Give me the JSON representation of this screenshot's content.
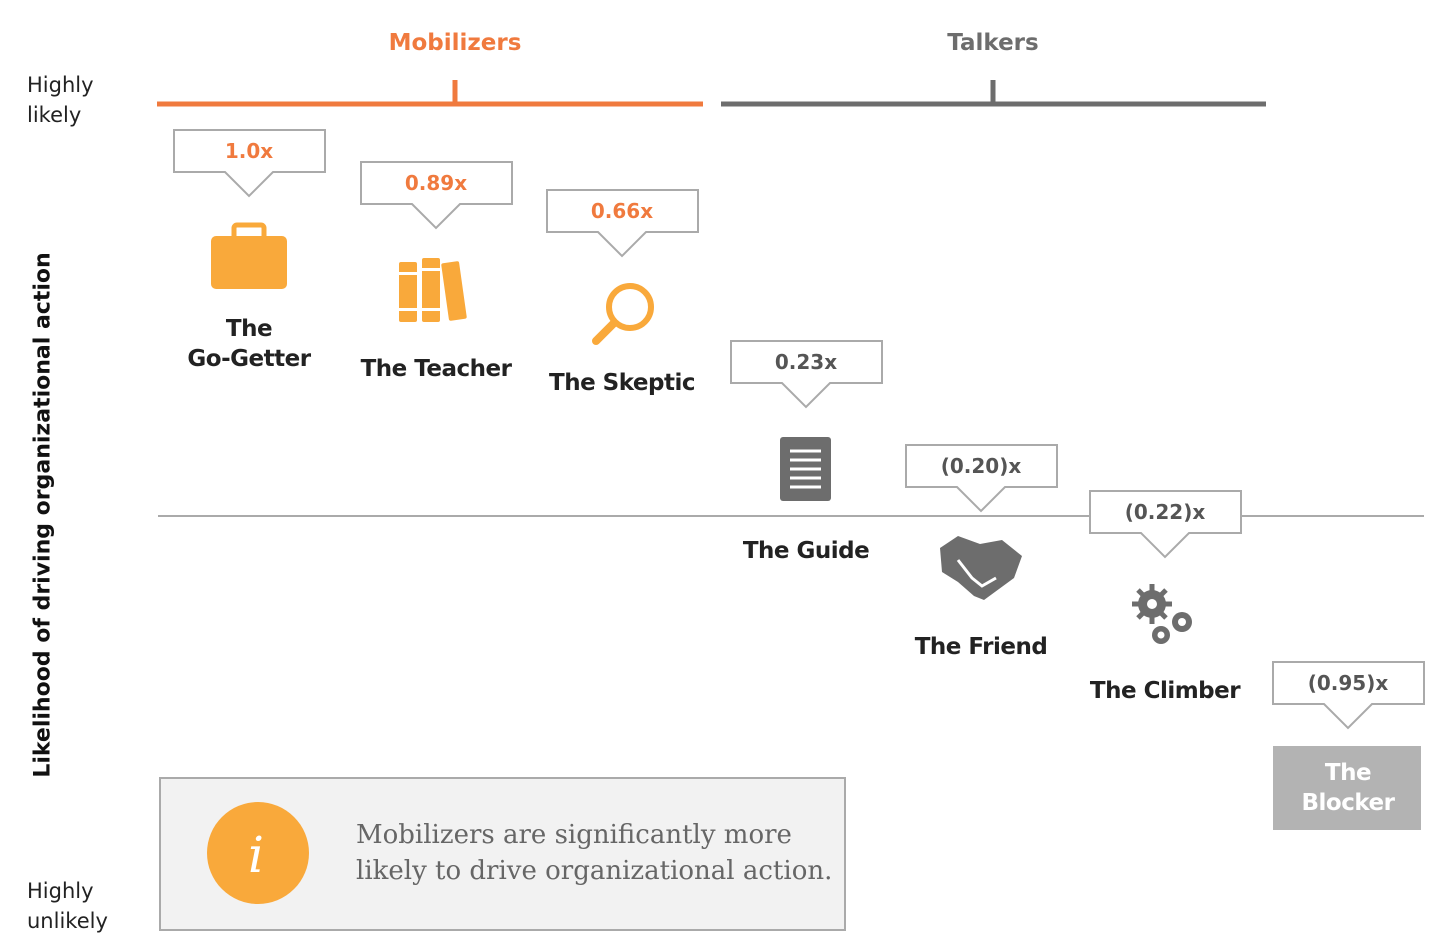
{
  "groups": [
    {
      "label": "Mobilizers"
    },
    {
      "label": "Talkers"
    }
  ],
  "axis": {
    "label": "Likelihood of driving organizational action",
    "top": "Highly\nlikely",
    "bottom": "Highly\nunlikely"
  },
  "profiles": [
    {
      "value": "1.0x",
      "name": "The\nGo-Getter"
    },
    {
      "value": "0.89x",
      "name": "The Teacher"
    },
    {
      "value": "0.66x",
      "name": "The Skeptic"
    },
    {
      "value": "0.23x",
      "name": "The Guide"
    },
    {
      "value": "(0.20)x",
      "name": "The Friend"
    },
    {
      "value": "(0.22)x",
      "name": "The Climber"
    },
    {
      "value": "(0.95)x",
      "name": "The\nBlocker"
    }
  ],
  "note": "Mobilizers are significantly more likely to drive organizational action."
}
